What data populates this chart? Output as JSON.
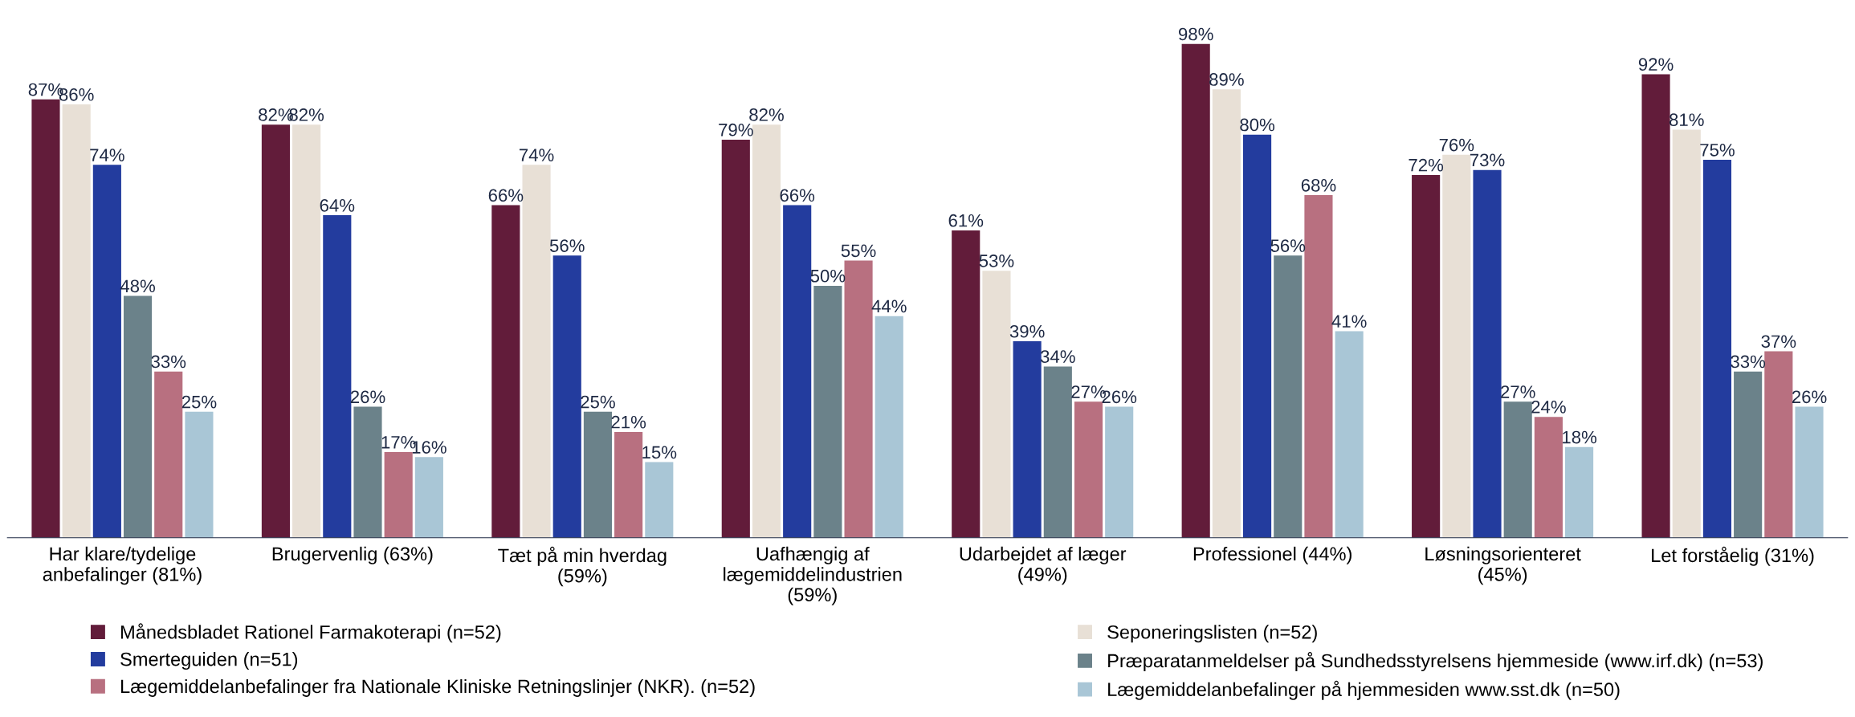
{
  "chart_data": {
    "type": "bar",
    "categories": [
      "Har klare/tydelige\nanbefalinger (81%)",
      "Brugervenlig (63%)",
      "Tæt på min hverdag\n(59%)",
      "Uafhængig af\nlægemiddelindustrien\n(59%)",
      "Udarbejdet af læger\n(49%)",
      "Professionel (44%)",
      "Løsningsorienteret\n(45%)",
      "Let forståelig (31%)"
    ],
    "series": [
      {
        "name": "Månedsbladet Rationel Farmakoterapi (n=52)",
        "color": "#621c3a",
        "values": [
          87,
          82,
          66,
          79,
          61,
          98,
          72,
          92
        ],
        "value_labels": [
          "87%",
          "82%",
          "66%",
          "79%",
          "61%",
          "98%",
          "72%",
          "92%"
        ]
      },
      {
        "name": "Seponeringslisten (n=52)",
        "color": "#e8e0d6",
        "values": [
          86,
          82,
          74,
          82,
          53,
          89,
          76,
          81
        ],
        "value_labels": [
          "86%",
          "82%",
          "74%",
          "82%",
          "53%",
          "89%",
          "76%",
          "81%"
        ]
      },
      {
        "name": "Smerteguiden (n=51)",
        "color": "#233c9e",
        "values": [
          74,
          64,
          56,
          66,
          39,
          80,
          73,
          75
        ],
        "value_labels": [
          "74%",
          "64%",
          "56%",
          "66%",
          "39%",
          "80%",
          "73%",
          "75%"
        ]
      },
      {
        "name": "Præparatanmeldelser på Sundhedsstyrelsens hjemmeside (www.irf.dk) (n=53)",
        "color": "#6b828a",
        "values": [
          48,
          26,
          25,
          50,
          34,
          56,
          27,
          33
        ],
        "value_labels": [
          "48%",
          "26%",
          "25%",
          "50%",
          "34%",
          "56%",
          "27%",
          "33%"
        ]
      },
      {
        "name": "Lægemiddelanbefalinger fra Nationale Kliniske Retningslinjer (NKR). (n=52)",
        "color": "#b87080",
        "values": [
          33,
          17,
          21,
          55,
          27,
          68,
          24,
          37
        ],
        "value_labels": [
          "33%",
          "17%",
          "21%",
          "55%",
          "27%",
          "68%",
          "24%",
          "37%"
        ]
      },
      {
        "name": "Lægemiddelanbefalinger på hjemmesiden www.sst.dk (n=50)",
        "color": "#a9c6d6",
        "values": [
          25,
          16,
          15,
          44,
          26,
          41,
          18,
          26
        ],
        "value_labels": [
          "25%",
          "16%",
          "15%",
          "44%",
          "26%",
          "41%",
          "18%",
          "26%"
        ]
      }
    ],
    "legend": "bottom",
    "grid": false,
    "tick_labels": "x"
  }
}
